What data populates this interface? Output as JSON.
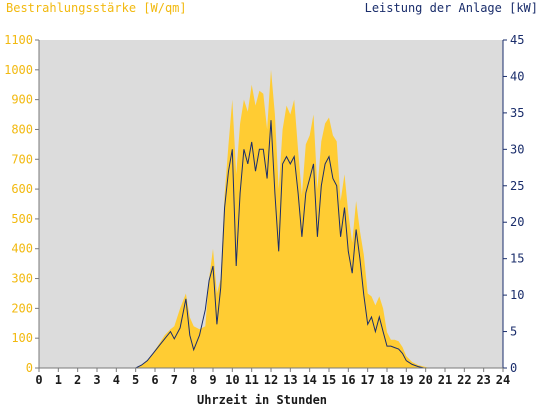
{
  "chart_data": {
    "type": "area",
    "title_left": "Bestrahlungsstärke [W/qm]",
    "title_right": "Leistung der Anlage [kW]",
    "xlabel": "Uhrzeit in Stunden",
    "x_ticks": [
      0,
      1,
      2,
      3,
      4,
      5,
      6,
      7,
      8,
      9,
      10,
      11,
      12,
      13,
      14,
      15,
      16,
      17,
      18,
      19,
      20,
      21,
      22,
      23,
      24
    ],
    "xlim": [
      0,
      24
    ],
    "y_left_ticks": [
      0,
      100,
      200,
      300,
      400,
      500,
      600,
      700,
      800,
      900,
      1000,
      1100
    ],
    "y_left_lim": [
      0,
      1100
    ],
    "y_right_ticks": [
      0,
      5,
      10,
      15,
      20,
      25,
      30,
      35,
      40,
      45
    ],
    "y_right_lim": [
      0,
      45
    ],
    "grid": false,
    "background_color": "#dcdcdc",
    "colors": {
      "left_axis": "#f2b90f",
      "right_axis": "#1a2d6b",
      "area": "#ffcc33",
      "line": "#1a2d6b",
      "frame": "#7a7a7a"
    },
    "series": [
      {
        "name": "Bestrahlungsstärke",
        "axis": "left",
        "x": [
          5.0,
          5.3,
          5.6,
          5.9,
          6.2,
          6.5,
          6.8,
          7.0,
          7.3,
          7.6,
          7.8,
          8.0,
          8.3,
          8.6,
          8.8,
          9.0,
          9.2,
          9.4,
          9.6,
          9.8,
          10.0,
          10.2,
          10.4,
          10.6,
          10.8,
          11.0,
          11.2,
          11.4,
          11.6,
          11.8,
          12.0,
          12.2,
          12.4,
          12.6,
          12.8,
          13.0,
          13.2,
          13.4,
          13.6,
          13.8,
          14.0,
          14.2,
          14.4,
          14.6,
          14.8,
          15.0,
          15.2,
          15.4,
          15.6,
          15.8,
          16.0,
          16.2,
          16.4,
          16.6,
          16.8,
          17.0,
          17.2,
          17.4,
          17.6,
          17.8,
          18.0,
          18.2,
          18.4,
          18.6,
          18.8,
          19.0,
          19.3,
          19.6,
          19.9,
          20.2,
          20.5
        ],
        "values": [
          0,
          10,
          25,
          50,
          80,
          110,
          130,
          140,
          200,
          250,
          170,
          140,
          130,
          140,
          300,
          400,
          250,
          300,
          580,
          750,
          900,
          650,
          820,
          900,
          860,
          950,
          880,
          930,
          920,
          800,
          1000,
          850,
          600,
          800,
          880,
          850,
          900,
          730,
          580,
          750,
          780,
          850,
          600,
          760,
          820,
          840,
          780,
          760,
          560,
          650,
          520,
          420,
          560,
          460,
          380,
          250,
          240,
          210,
          240,
          200,
          120,
          95,
          95,
          90,
          70,
          40,
          20,
          10,
          5,
          0,
          0
        ]
      },
      {
        "name": "Leistung der Anlage",
        "axis": "right",
        "x": [
          5.0,
          5.3,
          5.6,
          5.9,
          6.2,
          6.5,
          6.8,
          7.0,
          7.3,
          7.6,
          7.8,
          8.0,
          8.3,
          8.6,
          8.8,
          9.0,
          9.2,
          9.4,
          9.6,
          9.8,
          10.0,
          10.2,
          10.4,
          10.6,
          10.8,
          11.0,
          11.2,
          11.4,
          11.6,
          11.8,
          12.0,
          12.2,
          12.4,
          12.6,
          12.8,
          13.0,
          13.2,
          13.4,
          13.6,
          13.8,
          14.0,
          14.2,
          14.4,
          14.6,
          14.8,
          15.0,
          15.2,
          15.4,
          15.6,
          15.8,
          16.0,
          16.2,
          16.4,
          16.6,
          16.8,
          17.0,
          17.2,
          17.4,
          17.6,
          17.8,
          18.0,
          18.2,
          18.4,
          18.6,
          18.8,
          19.0,
          19.3,
          19.6,
          19.9,
          20.2,
          20.5
        ],
        "values": [
          0,
          0.4,
          1,
          2,
          3,
          4,
          5,
          4,
          5.5,
          9.5,
          4.5,
          2.5,
          4.5,
          8,
          12,
          14,
          6,
          11,
          22,
          27,
          30,
          14,
          24,
          30,
          28,
          31,
          27,
          30,
          30,
          26,
          34,
          24,
          16,
          28,
          29,
          28,
          29,
          24,
          18,
          24,
          26,
          28,
          18,
          25,
          28,
          29,
          26,
          25,
          18,
          22,
          16,
          13,
          19,
          15,
          10,
          6,
          7,
          5,
          7,
          5,
          3,
          3,
          2.8,
          2.6,
          2,
          1,
          0.5,
          0.2,
          0,
          0,
          0
        ]
      }
    ]
  }
}
